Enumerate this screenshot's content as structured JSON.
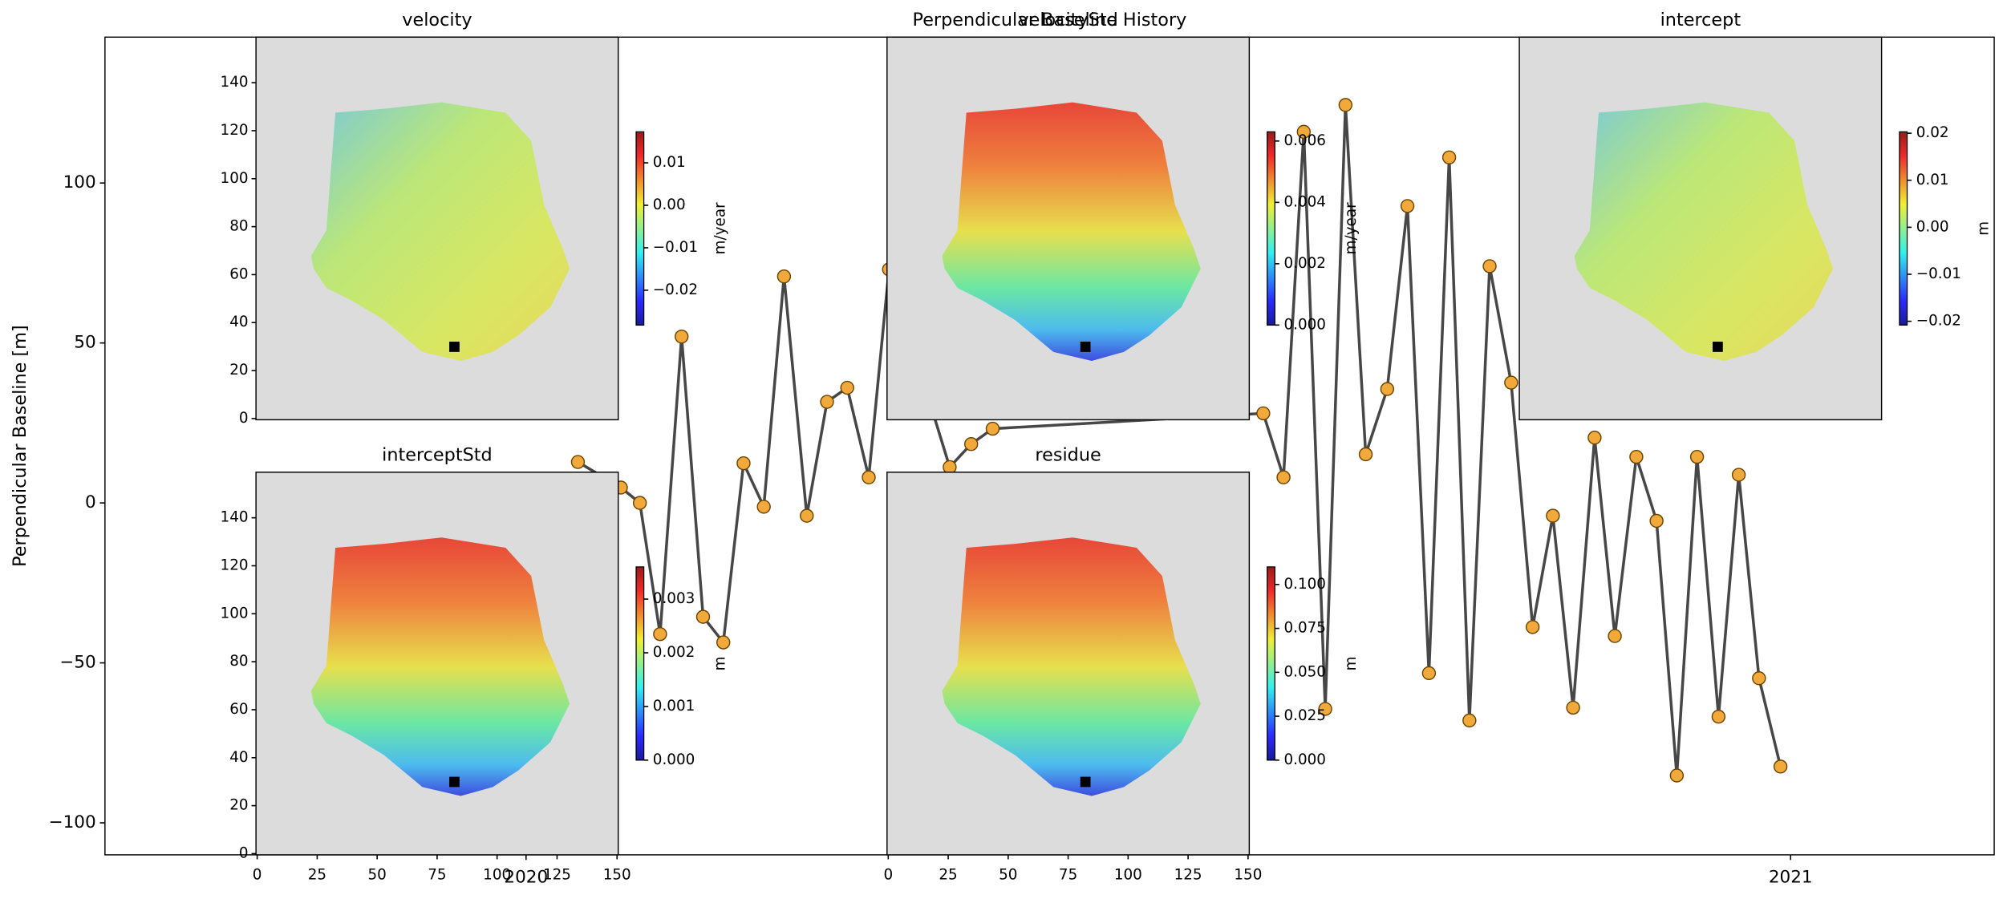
{
  "chart_data": [
    {
      "type": "line",
      "title": "Perpendicular Baseline History",
      "y_label": "Perpendicular Baseline [m]",
      "x": [
        2020.041,
        2020.075,
        2020.09,
        2020.106,
        2020.123,
        2020.14,
        2020.156,
        2020.172,
        2020.188,
        2020.204,
        2020.222,
        2020.238,
        2020.254,
        2020.271,
        2020.287,
        2020.335,
        2020.352,
        2020.369,
        2020.583,
        2020.599,
        2020.615,
        2020.632,
        2020.648,
        2020.664,
        2020.681,
        2020.697,
        2020.714,
        2020.73,
        2020.746,
        2020.762,
        2020.779,
        2020.796,
        2020.812,
        2020.828,
        2020.845,
        2020.861,
        2020.878,
        2020.894,
        2020.91,
        2020.926,
        2020.943,
        2020.959,
        2020.975,
        2020.992
      ],
      "values": [
        12.8,
        4.8,
        0,
        -41,
        52,
        -35.6,
        -43.6,
        12.4,
        -1.2,
        70.8,
        -4,
        31.6,
        36,
        8,
        73,
        11.2,
        18.4,
        23.2,
        28,
        8,
        116,
        -64.4,
        124.4,
        15.2,
        35.6,
        92.8,
        -53.2,
        108,
        -68,
        74,
        37.6,
        -38.8,
        -4,
        -64,
        20.4,
        -41.6,
        14.4,
        -5.6,
        -85.2,
        14.4,
        -66.8,
        8.8,
        -54.8,
        -82.4
      ],
      "color": "#474747",
      "marker_color": "#f2a93b",
      "xlim": [
        2019.667,
        2021.161
      ],
      "xticks": [
        2020,
        2021
      ],
      "ylim": [
        -110,
        145.6
      ],
      "yticks": [
        {
          "value": -100,
          "label": "−100"
        },
        {
          "value": -50,
          "label": "−50"
        },
        0,
        50,
        100
      ]
    },
    {
      "type": "image",
      "title": "velocity",
      "xlim": [
        -0.5,
        150.5
      ],
      "ylim": [
        -0.5,
        159
      ],
      "yticks": [
        0,
        20,
        40,
        60,
        80,
        100,
        120,
        140
      ],
      "colorbar": {
        "label": "m/year",
        "clim": [
          -0.0282,
          0.0173
        ],
        "ticks": [
          {
            "value": -0.02,
            "label": "−0.02"
          },
          {
            "value": -0.01,
            "label": "−0.01"
          },
          {
            "value": 0,
            "label": "0.00"
          },
          0.01
        ]
      }
    },
    {
      "type": "image",
      "title": "velocityStd",
      "xlim": [
        -0.5,
        150.5
      ],
      "ylim": [
        -0.5,
        159
      ],
      "colorbar": {
        "label": "m/year",
        "clim": [
          0,
          0.0063
        ],
        "ticks": [
          {
            "value": 0,
            "label": "0.000"
          },
          0.002,
          0.004,
          0.006
        ]
      }
    },
    {
      "type": "image",
      "title": "intercept",
      "xlim": [
        -0.5,
        150.5
      ],
      "ylim": [
        -0.5,
        159
      ],
      "colorbar": {
        "label": "m",
        "clim": [
          -0.0208,
          0.0203
        ],
        "ticks": [
          {
            "value": -0.02,
            "label": "−0.02"
          },
          {
            "value": -0.01,
            "label": "−0.01"
          },
          {
            "value": 0,
            "label": "0.00"
          },
          0.01,
          0.02
        ]
      }
    },
    {
      "type": "image",
      "title": "interceptStd",
      "xlim": [
        -0.5,
        150.5
      ],
      "ylim": [
        -0.5,
        159
      ],
      "xticks": [
        0,
        25,
        50,
        75,
        100,
        125,
        150
      ],
      "yticks": [
        0,
        20,
        40,
        60,
        80,
        100,
        120,
        140
      ],
      "colorbar": {
        "label": "m",
        "clim": [
          0,
          0.0036
        ],
        "ticks": [
          {
            "value": 0,
            "label": "0.000"
          },
          0.001,
          0.002,
          0.003
        ]
      }
    },
    {
      "type": "image",
      "title": "residue",
      "xlim": [
        -0.5,
        150.5
      ],
      "ylim": [
        -0.5,
        159
      ],
      "xticks": [
        0,
        25,
        50,
        75,
        100,
        125,
        150
      ],
      "colorbar": {
        "label": "m",
        "clim": [
          0,
          0.11
        ],
        "ticks": [
          {
            "value": 0,
            "label": "0.000"
          },
          0.025,
          {
            "value": 0.05,
            "label": "0.050"
          },
          0.075,
          {
            "value": 0.1,
            "label": "0.100"
          }
        ]
      }
    }
  ]
}
